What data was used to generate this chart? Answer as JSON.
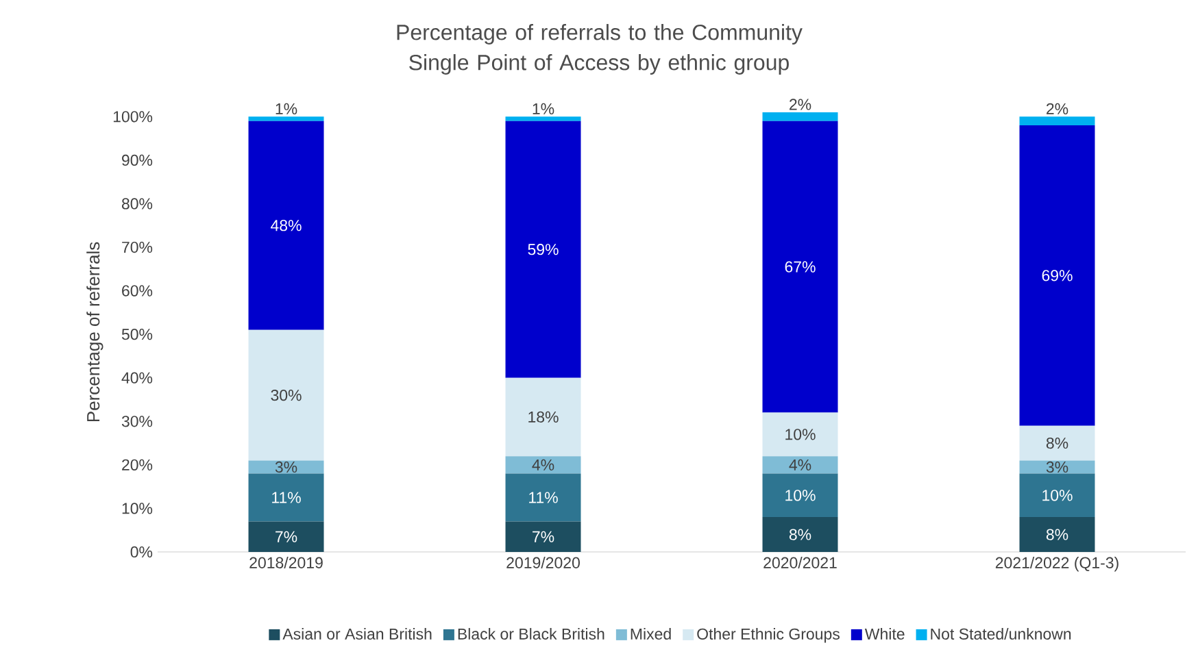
{
  "chart_data": {
    "type": "bar",
    "stacked": true,
    "title": "Percentage of referrals to the Community Single Point of Access by ethnic group",
    "ylabel": "Percentage of referrals",
    "categories": [
      "2018/2019",
      "2019/2020",
      "2020/2021",
      "2021/2022 (Q1-3)"
    ],
    "ylim": [
      0,
      101
    ],
    "yticks": [
      {
        "value": 0,
        "label": "0%"
      },
      {
        "value": 10,
        "label": "10%"
      },
      {
        "value": 20,
        "label": "20%"
      },
      {
        "value": 30,
        "label": "30%"
      },
      {
        "value": 40,
        "label": "40%"
      },
      {
        "value": 50,
        "label": "50%"
      },
      {
        "value": 60,
        "label": "60%"
      },
      {
        "value": 70,
        "label": "70%"
      },
      {
        "value": 80,
        "label": "80%"
      },
      {
        "value": 90,
        "label": "90%"
      },
      {
        "value": 100,
        "label": "100%"
      }
    ],
    "legend": "bottom",
    "series": [
      {
        "name": "Asian or Asian British",
        "color": "#1d4e60",
        "values": [
          7,
          7,
          8,
          8
        ],
        "value_labels": [
          "7%",
          "7%",
          "8%",
          "8%"
        ]
      },
      {
        "name": "Black or Black British",
        "color": "#2e7591",
        "values": [
          11,
          11,
          10,
          10
        ],
        "value_labels": [
          "11%",
          "11%",
          "10%",
          "10%"
        ]
      },
      {
        "name": "Mixed",
        "color": "#7fbcd6",
        "values": [
          3,
          4,
          4,
          3
        ],
        "value_labels": [
          "3%",
          "4%",
          "4%",
          "3%"
        ]
      },
      {
        "name": "Other Ethnic Groups",
        "color": "#d6e9f2",
        "values": [
          30,
          18,
          10,
          8
        ],
        "value_labels": [
          "30%",
          "18%",
          "10%",
          "8%"
        ]
      },
      {
        "name": "White",
        "color": "#0000cc",
        "values": [
          48,
          59,
          67,
          69
        ],
        "value_labels": [
          "48%",
          "59%",
          "67%",
          "69%"
        ]
      },
      {
        "name": "Not Stated/unknown",
        "color": "#00b0f0",
        "values": [
          1,
          1,
          2,
          2
        ],
        "value_labels": [
          "1%",
          "1%",
          "2%",
          "2%"
        ]
      }
    ]
  }
}
